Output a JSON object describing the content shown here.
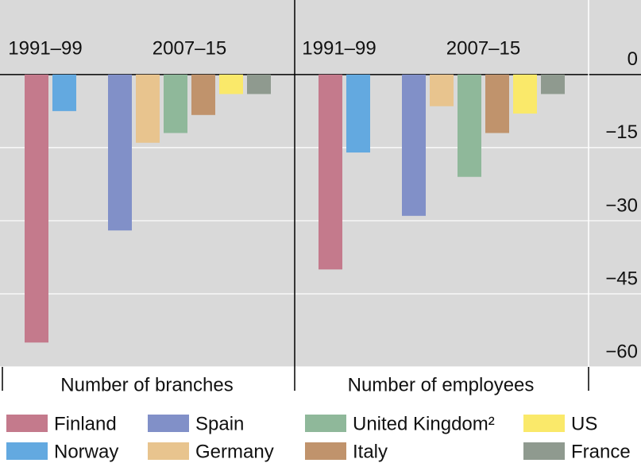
{
  "chart_data": {
    "type": "bar",
    "categories": [
      "Number of branches",
      "Number of employees"
    ],
    "groups": [
      "1991–99",
      "2007–15"
    ],
    "series": [
      {
        "name": "Finland",
        "color": "#c47a8c",
        "group": 0,
        "values": [
          -55,
          -40
        ]
      },
      {
        "name": "Norway",
        "color": "#63a9e0",
        "group": 0,
        "values": [
          -7.5,
          -16
        ]
      },
      {
        "name": "Spain",
        "color": "#8190c8",
        "group": 1,
        "values": [
          -32,
          -29
        ]
      },
      {
        "name": "Germany",
        "color": "#e8c48e",
        "group": 1,
        "values": [
          -14,
          -6.5
        ]
      },
      {
        "name": "United Kingdom²",
        "color": "#8fb89a",
        "group": 1,
        "values": [
          -12,
          -21
        ]
      },
      {
        "name": "Italy",
        "color": "#c0936c",
        "group": 1,
        "values": [
          -8.3,
          -12
        ]
      },
      {
        "name": "US",
        "color": "#fae96a",
        "group": 1,
        "values": [
          -4,
          -8
        ]
      },
      {
        "name": "France",
        "color": "#8f9a8f",
        "group": 1,
        "values": [
          -4,
          -4
        ]
      }
    ],
    "ylim": [
      -60,
      15.3
    ],
    "yticks": [
      0,
      {
        "value": -15,
        "label": "−15"
      },
      {
        "value": -30,
        "label": "−30"
      },
      {
        "value": -45,
        "label": "−45"
      },
      {
        "value": -60,
        "label": "−60"
      }
    ],
    "grid": true
  }
}
